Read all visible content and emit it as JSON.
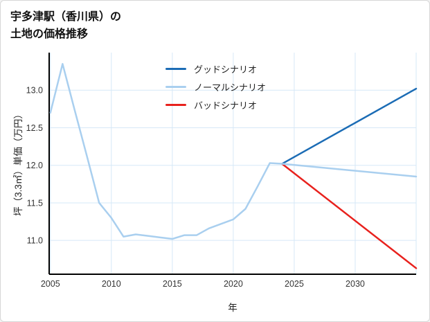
{
  "header": {
    "title_line1": "宇多津駅（香川県）の",
    "title_line2": "土地の価格推移"
  },
  "chart_data": {
    "type": "line",
    "title": "宇多津駅（香川県）の土地の価格推移",
    "xlabel": "年",
    "ylabel": "坪（3.3㎡）単価（万円）",
    "xlim": [
      2004.9,
      2035
    ],
    "ylim": [
      10.55,
      13.5
    ],
    "xticks": [
      2005,
      2010,
      2015,
      2020,
      2025,
      2030
    ],
    "yticks": [
      11.0,
      11.5,
      12.0,
      12.5,
      13.0
    ],
    "grid": true,
    "grid_color": "#d6e8f7",
    "axis_color": "#000000",
    "legend_position": "top-center",
    "series": [
      {
        "name": "グッドシナリオ",
        "color": "#1b6cb5",
        "x": [
          2024,
          2035
        ],
        "values": [
          12.02,
          13.02
        ]
      },
      {
        "name": "ノーマルシナリオ",
        "color": "#a9cfef",
        "x": [
          2005,
          2006,
          2007,
          2008,
          2009,
          2010,
          2011,
          2012,
          2013,
          2014,
          2015,
          2016,
          2017,
          2018,
          2019,
          2020,
          2021,
          2022,
          2023,
          2024,
          2035
        ],
        "values": [
          12.7,
          13.35,
          12.73,
          12.12,
          11.5,
          11.3,
          11.05,
          11.08,
          11.06,
          11.04,
          11.02,
          11.07,
          11.07,
          11.16,
          11.22,
          11.28,
          11.42,
          11.72,
          12.03,
          12.02,
          11.85
        ]
      },
      {
        "name": "バッドシナリオ",
        "color": "#e8211d",
        "x": [
          2024,
          2035
        ],
        "values": [
          12.02,
          10.63
        ]
      }
    ]
  }
}
